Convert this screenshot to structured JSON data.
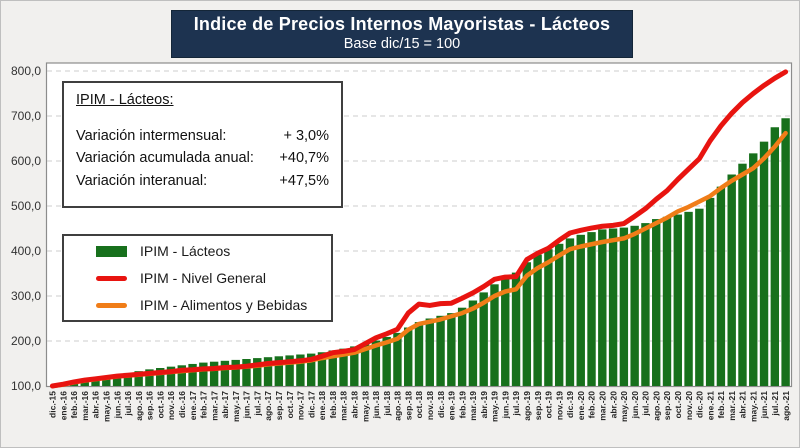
{
  "header": {
    "title": "Indice de Precios Internos Mayoristas - Lácteos",
    "subtitle": "Base dic/15 = 100"
  },
  "info_box": {
    "heading": "IPIM - Lácteos:",
    "rows": [
      {
        "label": "Variación intermensual:",
        "value": "+ 3,0%"
      },
      {
        "label": "Variación acumulada anual:",
        "value": "+40,7%"
      },
      {
        "label": "Variación interanual:",
        "value": "+47,5%"
      }
    ]
  },
  "legend": [
    {
      "label": "IPIM - Lácteos",
      "color": "#17701c",
      "swatch": "bar"
    },
    {
      "label": "IPIM - Nivel General",
      "color": "#e81410",
      "swatch": "line"
    },
    {
      "label": "IPIM - Alimentos y Bebidas",
      "color": "#f07d18",
      "swatch": "line"
    }
  ],
  "chart_data": {
    "type": "bar",
    "title": "Indice de Precios Internos Mayoristas - Lácteos",
    "subtitle": "Base dic/15 = 100",
    "xlabel": "",
    "ylabel": "",
    "ylim": [
      100,
      800
    ],
    "ytick_step": 100,
    "ytick_labels": [
      "100,0",
      "200,0",
      "300,0",
      "400,0",
      "500,0",
      "600,0",
      "700,0",
      "800,0"
    ],
    "grid": "horizontal-dashed",
    "legend_position": "upper-left-box",
    "categories": [
      "dic.-15",
      "ene.-16",
      "feb.-16",
      "mar.-16",
      "abr.-16",
      "may.-16",
      "jun.-16",
      "jul.-16",
      "ago.-16",
      "sep.-16",
      "oct.-16",
      "nov.-16",
      "dic.-16",
      "ene.-17",
      "feb.-17",
      "mar.-17",
      "abr.-17",
      "may.-17",
      "jun.-17",
      "jul.-17",
      "ago.-17",
      "sep.-17",
      "oct.-17",
      "nov.-17",
      "dic.-17",
      "ene.-18",
      "feb.-18",
      "mar.-18",
      "abr.-18",
      "may.-18",
      "jun.-18",
      "jul.-18",
      "ago.-18",
      "sep.-18",
      "oct.-18",
      "nov.-18",
      "dic.-18",
      "ene.-19",
      "feb.-19",
      "mar.-19",
      "abr.-19",
      "may.-19",
      "jun.-19",
      "jul.-19",
      "ago.-19",
      "sep.-19",
      "oct.-19",
      "nov.-19",
      "dic.-19",
      "ene.-20",
      "feb.-20",
      "mar.-20",
      "abr.-20",
      "may.-20",
      "jun.-20",
      "jul.-20",
      "ago.-20",
      "sep.-20",
      "oct.-20",
      "nov.-20",
      "dic.-20",
      "ene.-21",
      "feb.-21",
      "mar.-21",
      "abr.-21",
      "may.-21",
      "jun.-21",
      "jul.-21",
      "ago.-21"
    ],
    "series": [
      {
        "name": "IPIM - Lácteos",
        "type": "bar",
        "color": "#17701c",
        "values": [
          100,
          103,
          107,
          112,
          117,
          121,
          125,
          129,
          133,
          137,
          140,
          143,
          146,
          149,
          152,
          154,
          156,
          158,
          160,
          162,
          164,
          166,
          168,
          170,
          172,
          175,
          179,
          183,
          188,
          194,
          201,
          209,
          218,
          230,
          242,
          250,
          256,
          262,
          274,
          290,
          308,
          326,
          340,
          352,
          375,
          392,
          404,
          416,
          428,
          436,
          442,
          448,
          450,
          452,
          456,
          462,
          471,
          476,
          481,
          487,
          494,
          518,
          543,
          570,
          594,
          617,
          643,
          675,
          695
        ]
      },
      {
        "name": "IPIM - Nivel General",
        "type": "line",
        "color": "#e81410",
        "values": [
          100,
          104,
          109,
          113,
          116,
          119,
          122,
          124,
          126,
          128,
          130,
          132,
          135,
          136,
          138,
          139,
          141,
          142,
          144,
          147,
          150,
          152,
          154,
          156,
          159,
          166,
          174,
          177,
          181,
          194,
          207,
          216,
          226,
          262,
          282,
          279,
          283,
          284,
          295,
          307,
          321,
          337,
          342,
          343,
          381,
          395,
          406,
          424,
          440,
          446,
          451,
          455,
          457,
          461,
          477,
          494,
          515,
          534,
          559,
          582,
          605,
          645,
          678,
          706,
          730,
          750,
          768,
          784,
          798
        ]
      },
      {
        "name": "IPIM - Alimentos y Bebidas",
        "type": "line",
        "color": "#f07d18",
        "values": [
          100,
          103,
          108,
          112,
          115,
          118,
          121,
          123,
          125,
          127,
          129,
          131,
          133,
          135,
          137,
          138,
          140,
          141,
          143,
          145,
          148,
          150,
          152,
          154,
          157,
          162,
          166,
          170,
          174,
          182,
          190,
          197,
          205,
          225,
          238,
          243,
          248,
          255,
          262,
          272,
          285,
          300,
          310,
          315,
          345,
          362,
          375,
          390,
          404,
          410,
          415,
          420,
          424,
          428,
          438,
          450,
          462,
          474,
          488,
          498,
          510,
          522,
          540,
          556,
          570,
          584,
          606,
          632,
          662
        ]
      }
    ]
  }
}
